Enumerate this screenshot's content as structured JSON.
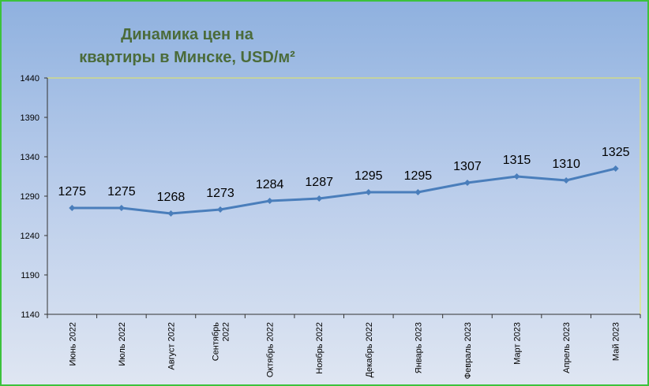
{
  "chart_data": {
    "type": "line",
    "title_line1": "Динамика цен на",
    "title_line2": "квартиры в Минске, USD/м²",
    "xlabel": "",
    "ylabel": "",
    "ylim": [
      1140,
      1440
    ],
    "yticks": [
      1140,
      1190,
      1240,
      1290,
      1340,
      1390,
      1440
    ],
    "categories": [
      [
        "Июнь 2022"
      ],
      [
        "Июль 2022"
      ],
      [
        "Август 2022"
      ],
      [
        "Сентябрь",
        "2022"
      ],
      [
        "Октябрь 2022"
      ],
      [
        "Ноябрь 2022"
      ],
      [
        "Декабрь 2022"
      ],
      [
        "Январь 2023"
      ],
      [
        "Февраль 2023"
      ],
      [
        "Март 2023"
      ],
      [
        "Апрель 2023"
      ],
      [
        "Май 2023"
      ]
    ],
    "series": [
      {
        "values": [
          1275,
          1275,
          1268,
          1273,
          1284,
          1287,
          1295,
          1295,
          1307,
          1315,
          1310,
          1325
        ],
        "color": "#4a7ebb"
      }
    ],
    "plot_border_color": "#e8e85a",
    "grid": false
  }
}
